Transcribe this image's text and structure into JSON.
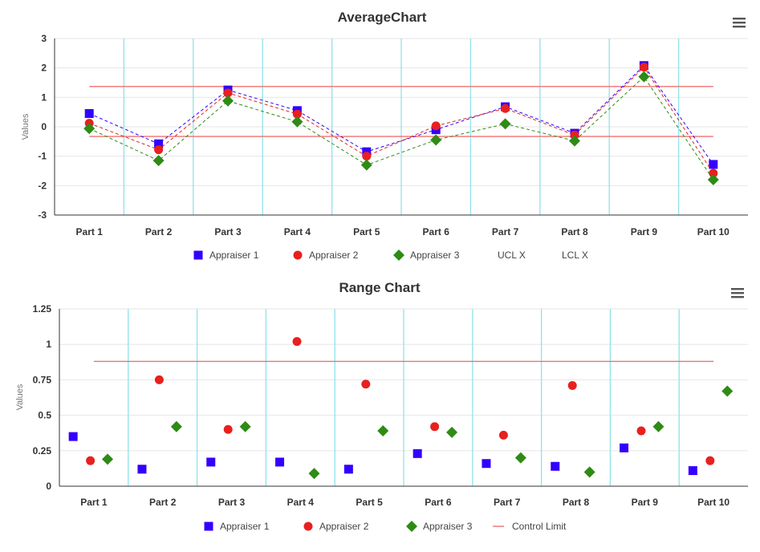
{
  "chart_data": [
    {
      "type": "line",
      "title": "AverageChart",
      "xlabel": "",
      "ylabel": "Values",
      "ylim": [
        -3,
        3
      ],
      "yticks": [
        "-3",
        "-2",
        "-1",
        "0",
        "1",
        "2",
        "3"
      ],
      "categories": [
        "Part 1",
        "Part 2",
        "Part 3",
        "Part 4",
        "Part 5",
        "Part 6",
        "Part 7",
        "Part 8",
        "Part 9",
        "Part 10"
      ],
      "series": [
        {
          "name": "Appraiser 1",
          "color": "#3300ff",
          "marker": "square",
          "dashed": true,
          "values": [
            0.45,
            -0.58,
            1.25,
            0.55,
            -0.85,
            -0.1,
            0.68,
            -0.22,
            2.08,
            -1.28
          ]
        },
        {
          "name": "Appraiser 2",
          "color": "#e8201f",
          "marker": "circle",
          "dashed": true,
          "values": [
            0.12,
            -0.78,
            1.15,
            0.43,
            -1.0,
            0.03,
            0.62,
            -0.28,
            2.03,
            -1.58
          ]
        },
        {
          "name": "Appraiser 3",
          "color": "#2e8b14",
          "marker": "diamond",
          "dashed": true,
          "values": [
            -0.06,
            -1.15,
            0.88,
            0.17,
            -1.3,
            -0.45,
            0.1,
            -0.48,
            1.7,
            -1.8
          ]
        }
      ],
      "control_lines": [
        {
          "name": "UCL X",
          "color": "#f07070",
          "value": 1.37
        },
        {
          "name": "LCL X",
          "color": "#f07070",
          "value": -0.33
        }
      ],
      "grid": true,
      "legend_position": "bottom"
    },
    {
      "type": "scatter",
      "title": "Range Chart",
      "xlabel": "",
      "ylabel": "Values",
      "ylim": [
        0,
        1.25
      ],
      "yticks": [
        "0",
        "0.25",
        "0.5",
        "0.75",
        "1",
        "1.25"
      ],
      "categories": [
        "Part 1",
        "Part 2",
        "Part 3",
        "Part 4",
        "Part 5",
        "Part 6",
        "Part 7",
        "Part 8",
        "Part 9",
        "Part 10"
      ],
      "series": [
        {
          "name": "Appraiser 1",
          "color": "#3300ff",
          "marker": "square",
          "values": [
            0.35,
            0.12,
            0.17,
            0.17,
            0.12,
            0.23,
            0.16,
            0.14,
            0.27,
            0.11
          ]
        },
        {
          "name": "Appraiser 2",
          "color": "#e8201f",
          "marker": "circle",
          "values": [
            0.18,
            0.75,
            0.4,
            1.02,
            0.72,
            0.42,
            0.36,
            0.71,
            0.39,
            0.18
          ]
        },
        {
          "name": "Appraiser 3",
          "color": "#2e8b14",
          "marker": "diamond",
          "values": [
            0.19,
            0.42,
            0.42,
            0.09,
            0.39,
            0.38,
            0.2,
            0.1,
            0.42,
            0.67
          ]
        }
      ],
      "control_lines": [
        {
          "name": "Control Limit",
          "color": "#f07070",
          "value": 0.88
        }
      ],
      "grid": true,
      "legend_position": "bottom"
    }
  ],
  "colors": {
    "category_grid": "#8fe3ea",
    "value_grid": "#e6e6e6",
    "axis": "#333333"
  },
  "icons": [
    "hamburger-menu-icon"
  ]
}
